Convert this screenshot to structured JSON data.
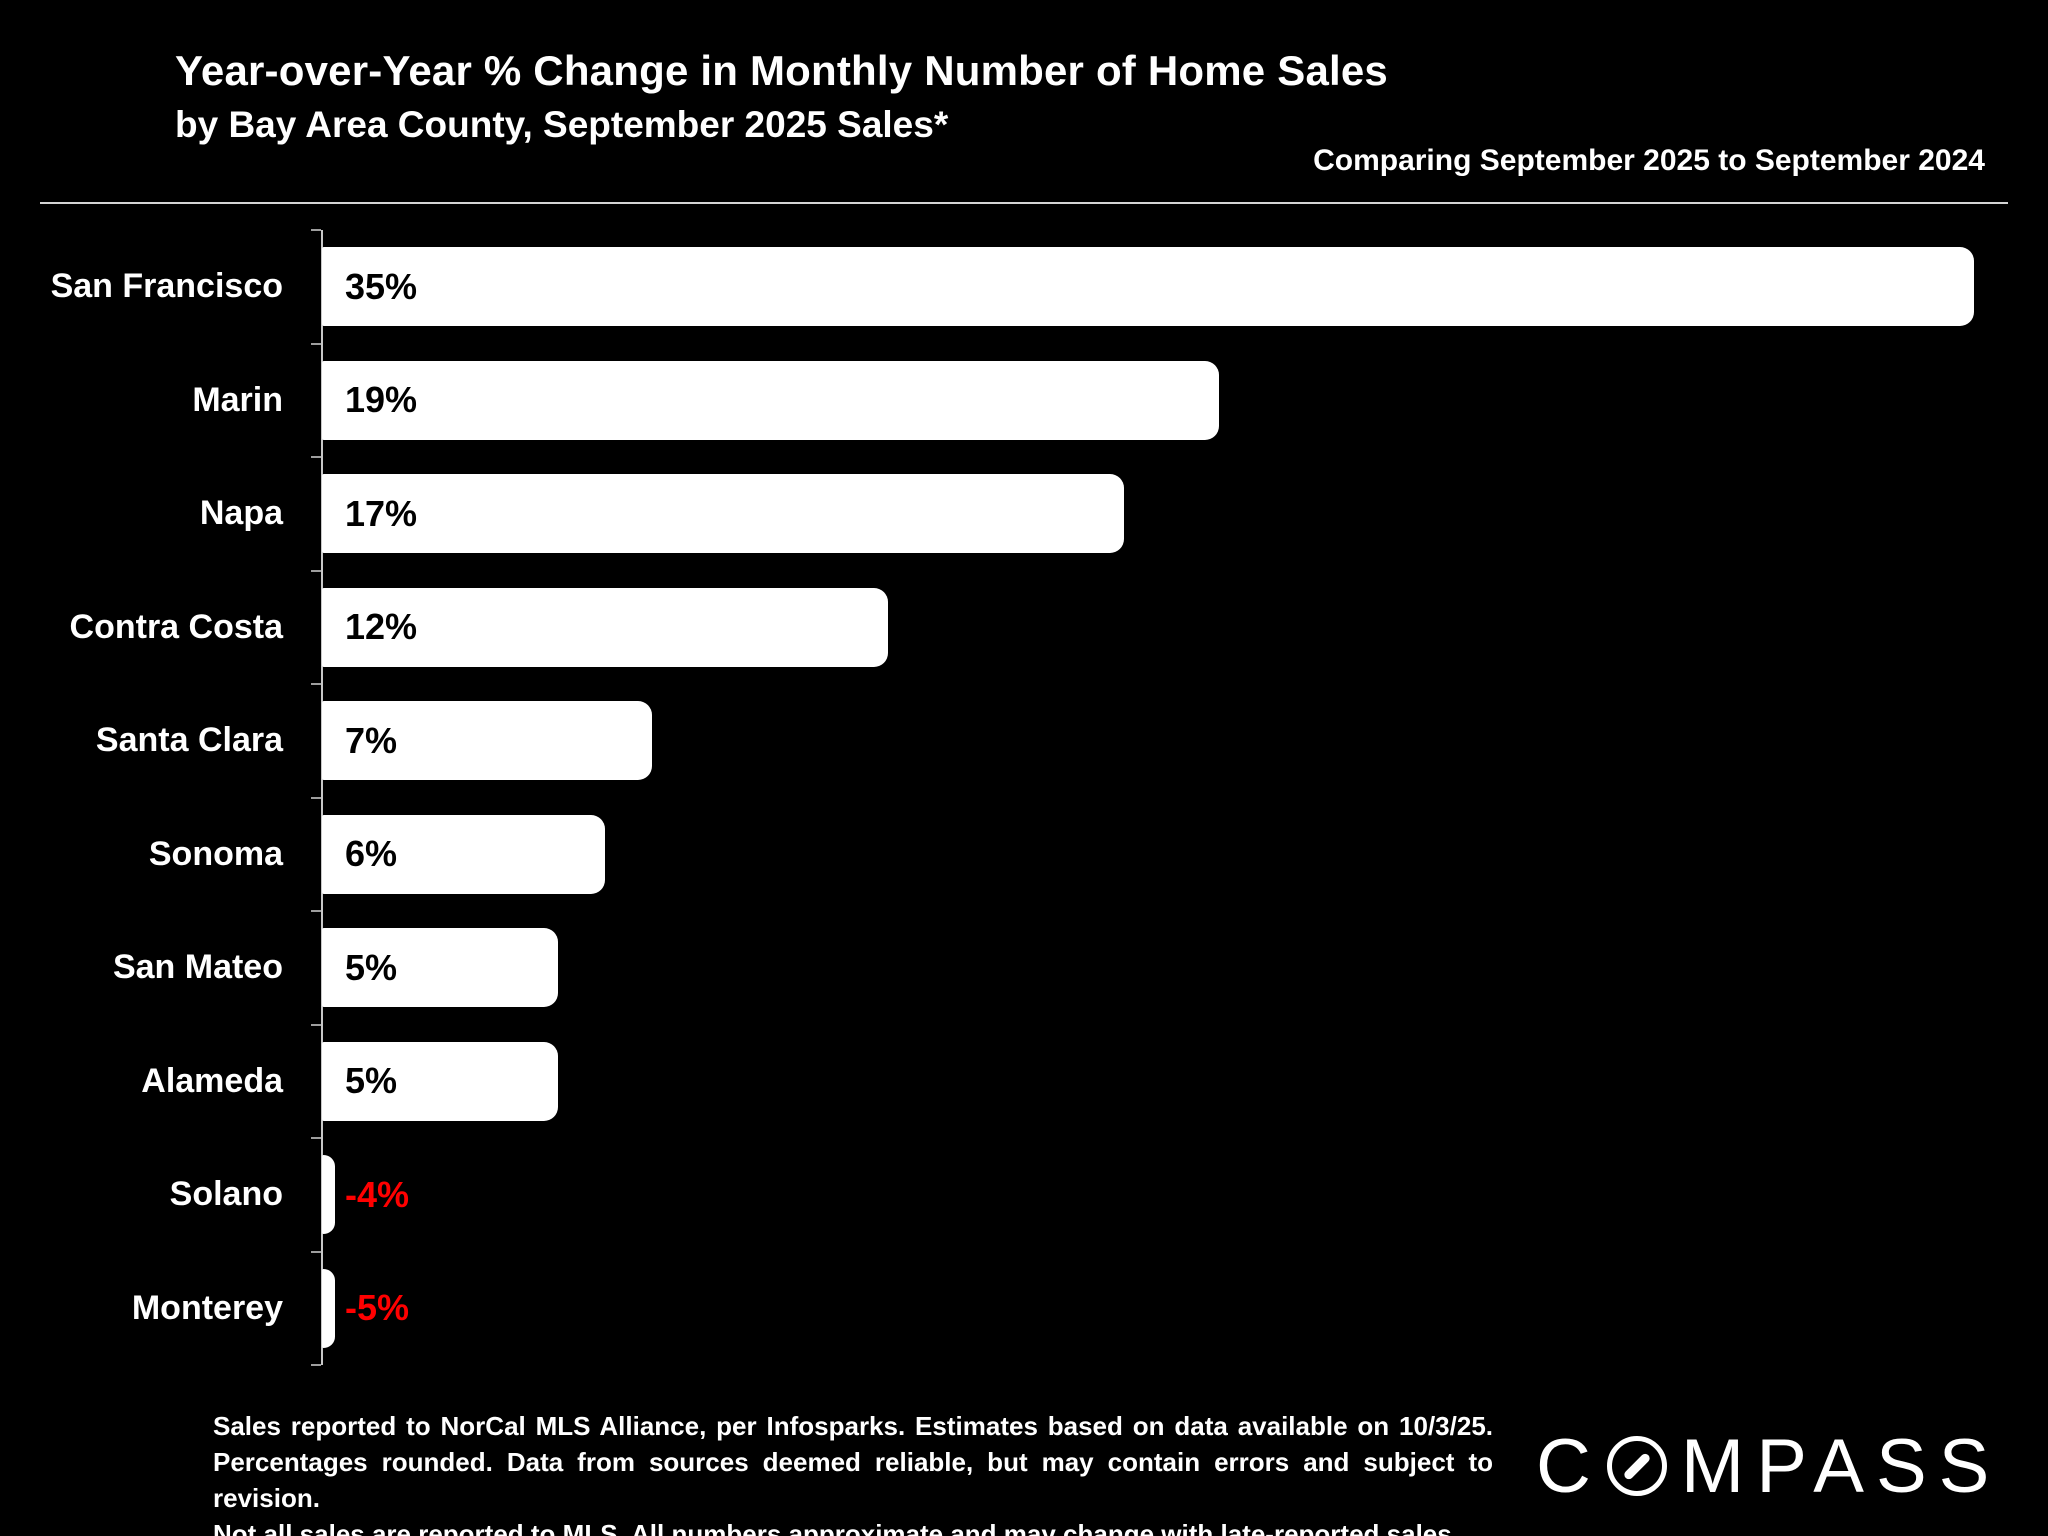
{
  "header": {
    "title_line1": "Year-over-Year % Change in Monthly Number of Home Sales",
    "title_line2": "by Bay Area County, September 2025 Sales*",
    "comparison_note": "Comparing September 2025 to September 2024"
  },
  "chart_data": {
    "type": "bar",
    "orientation": "horizontal",
    "title": "Year-over-Year % Change in Monthly Number of Home Sales by Bay Area County, September 2025 Sales*",
    "categories": [
      "San Francisco",
      "Marin",
      "Napa",
      "Contra Costa",
      "Santa Clara",
      "Sonoma",
      "San Mateo",
      "Alameda",
      "Solano",
      "Monterey"
    ],
    "values": [
      35,
      19,
      17,
      12,
      7,
      6,
      5,
      5,
      -4,
      -5
    ],
    "labels": [
      "35%",
      "19%",
      "17%",
      "12%",
      "7%",
      "6%",
      "5%",
      "5%",
      "-4%",
      "-5%"
    ],
    "xlim": [
      0,
      35
    ],
    "grid": false,
    "legend": false,
    "bar_color": "#ffffff",
    "positive_label_color": "#000000",
    "negative_label_color": "#ff0000"
  },
  "footer": {
    "disclaimer_line1": "Sales reported to NorCal MLS Alliance, per Infosparks. Estimates based on data available on 10/3/25.",
    "disclaimer_line2": "Percentages rounded. Data from sources deemed reliable, but may contain errors and subject to revision.",
    "disclaimer_line3": "Not all sales are reported to MLS. All numbers approximate and may change with late-reported sales.",
    "logo_text": "COMPASS"
  },
  "colors": {
    "background": "#000000",
    "text": "#ffffff",
    "axis": "#c8c8c8",
    "negative": "#ff0000"
  }
}
